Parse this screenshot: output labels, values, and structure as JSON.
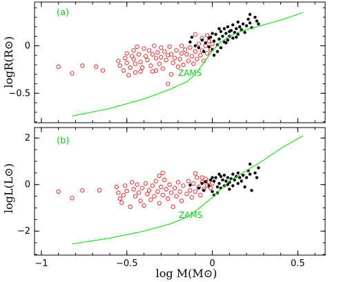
{
  "chart_data": [
    {
      "type": "scatter",
      "panel_label": "(a)",
      "xlim": [
        -1.04,
        0.66
      ],
      "ylim": [
        -0.81,
        0.46
      ],
      "xticks": [
        -1,
        -0.5,
        0,
        0.5
      ],
      "xtick_labels": [
        "",
        "",
        "",
        ""
      ],
      "yticks": [
        -0.5,
        0
      ],
      "ytick_labels": [
        "−0.5",
        "0"
      ],
      "ylabel": "logR(R⊙)",
      "xlabel": "",
      "annotation": "ZAMS",
      "grid": false,
      "legend": "none",
      "colors": {
        "open": "#e01a1a",
        "filled": "#000000",
        "zams": "#22dd22"
      },
      "series": [
        {
          "kind": "open-circle",
          "points": [
            [
              -0.9,
              -0.22
            ],
            [
              -0.82,
              -0.29
            ],
            [
              -0.76,
              -0.21
            ],
            [
              -0.68,
              -0.22
            ],
            [
              -0.64,
              -0.26
            ],
            [
              -0.55,
              -0.16
            ],
            [
              -0.54,
              -0.21
            ],
            [
              -0.52,
              -0.26
            ],
            [
              -0.51,
              -0.13
            ],
            [
              -0.5,
              -0.08
            ],
            [
              -0.5,
              -0.18
            ],
            [
              -0.49,
              -0.31
            ],
            [
              -0.47,
              -0.11
            ],
            [
              -0.46,
              -0.05
            ],
            [
              -0.46,
              -0.14
            ],
            [
              -0.45,
              -0.19
            ],
            [
              -0.44,
              -0.01
            ],
            [
              -0.43,
              -0.09
            ],
            [
              -0.42,
              -0.17
            ],
            [
              -0.41,
              -0.23
            ],
            [
              -0.4,
              -0.03
            ],
            [
              -0.39,
              -0.11
            ],
            [
              -0.38,
              -0.15
            ],
            [
              -0.37,
              -0.05
            ],
            [
              -0.36,
              -0.21
            ],
            [
              -0.35,
              -0.09
            ],
            [
              -0.35,
              -0.27
            ],
            [
              -0.34,
              0.0
            ],
            [
              -0.33,
              -0.13
            ],
            [
              -0.32,
              -0.07
            ],
            [
              -0.31,
              -0.19
            ],
            [
              -0.3,
              -0.02
            ],
            [
              -0.3,
              -0.12
            ],
            [
              -0.29,
              -0.24
            ],
            [
              -0.28,
              -0.06
            ],
            [
              -0.27,
              -0.15
            ],
            [
              -0.26,
              -0.1
            ],
            [
              -0.26,
              -0.4
            ],
            [
              -0.25,
              -0.01
            ],
            [
              -0.24,
              -0.09
            ],
            [
              -0.23,
              -0.18
            ],
            [
              -0.22,
              -0.13
            ],
            [
              -0.21,
              -0.05
            ],
            [
              -0.2,
              -0.22
            ],
            [
              -0.19,
              -0.14
            ],
            [
              -0.18,
              -0.08
            ],
            [
              -0.17,
              -0.2
            ],
            [
              -0.15,
              -0.09
            ],
            [
              -0.14,
              -0.16
            ],
            [
              -0.13,
              -0.02
            ],
            [
              -0.12,
              -0.11
            ],
            [
              -0.11,
              -0.19
            ],
            [
              -0.1,
              -0.06
            ],
            [
              -0.09,
              -0.14
            ],
            [
              -0.08,
              0.02
            ],
            [
              -0.07,
              -0.1
            ],
            [
              -0.06,
              -0.05
            ],
            [
              -0.05,
              -0.16
            ],
            [
              -0.04,
              0.0
            ],
            [
              -0.03,
              -0.08
            ],
            [
              -0.02,
              0.05
            ],
            [
              -0.01,
              -0.04
            ],
            [
              0.0,
              0.02
            ],
            [
              -0.1,
              0.12
            ],
            [
              -0.06,
              0.08
            ],
            [
              -0.03,
              0.11
            ],
            [
              -0.18,
              0.0
            ],
            [
              -0.16,
              -0.04
            ],
            [
              -0.24,
              -0.3
            ],
            [
              -0.33,
              -0.26
            ],
            [
              -0.42,
              -0.27
            ],
            [
              -0.48,
              -0.23
            ],
            [
              -0.45,
              -0.28
            ]
          ]
        },
        {
          "kind": "filled-circle",
          "points": [
            [
              -0.13,
              0.04
            ],
            [
              -0.08,
              -0.02
            ],
            [
              -0.06,
              0.06
            ],
            [
              -0.05,
              -0.06
            ],
            [
              -0.04,
              0.03
            ],
            [
              -0.02,
              -0.01
            ],
            [
              -0.01,
              0.09
            ],
            [
              0.0,
              -0.04
            ],
            [
              0.01,
              0.05
            ],
            [
              0.01,
              -0.1
            ],
            [
              0.02,
              0.12
            ],
            [
              0.03,
              0.01
            ],
            [
              0.03,
              -0.06
            ],
            [
              0.04,
              0.07
            ],
            [
              0.05,
              0.15
            ],
            [
              0.05,
              -0.02
            ],
            [
              0.06,
              0.1
            ],
            [
              0.07,
              0.04
            ],
            [
              0.07,
              0.18
            ],
            [
              0.08,
              0.13
            ],
            [
              0.09,
              0.06
            ],
            [
              0.09,
              0.2
            ],
            [
              0.1,
              0.1
            ],
            [
              0.11,
              0.16
            ],
            [
              0.12,
              0.22
            ],
            [
              0.12,
              0.08
            ],
            [
              0.13,
              0.14
            ],
            [
              0.14,
              0.18
            ],
            [
              0.15,
              0.25
            ],
            [
              0.15,
              0.12
            ],
            [
              0.16,
              0.2
            ],
            [
              0.17,
              0.17
            ],
            [
              0.18,
              0.23
            ],
            [
              0.19,
              0.14
            ],
            [
              0.2,
              0.21
            ],
            [
              0.21,
              0.28
            ],
            [
              0.22,
              0.24
            ],
            [
              0.23,
              0.19
            ],
            [
              0.22,
              0.33
            ],
            [
              0.25,
              0.3
            ],
            [
              0.26,
              0.26
            ],
            [
              0.27,
              0.23
            ],
            [
              -0.02,
              0.08
            ],
            [
              0.0,
              0.13
            ],
            [
              0.04,
              0.18
            ],
            [
              0.08,
              0.03
            ],
            [
              0.1,
              0.15
            ],
            [
              0.14,
              0.09
            ],
            [
              -0.1,
              0.0
            ],
            [
              -0.12,
              0.09
            ]
          ]
        },
        {
          "kind": "line",
          "name": "ZAMS",
          "points": [
            [
              -0.82,
              -0.74
            ],
            [
              -0.6,
              -0.66
            ],
            [
              -0.4,
              -0.56
            ],
            [
              -0.25,
              -0.46
            ],
            [
              -0.15,
              -0.38
            ],
            [
              -0.1,
              -0.3
            ],
            [
              -0.05,
              -0.18
            ],
            [
              0.0,
              -0.05
            ],
            [
              0.05,
              0.04
            ],
            [
              0.1,
              0.1
            ],
            [
              0.15,
              0.14
            ],
            [
              0.2,
              0.17
            ],
            [
              0.3,
              0.22
            ],
            [
              0.4,
              0.27
            ],
            [
              0.53,
              0.35
            ]
          ]
        }
      ]
    },
    {
      "type": "scatter",
      "panel_label": "(b)",
      "xlim": [
        -1.04,
        0.66
      ],
      "ylim": [
        -3.03,
        2.45
      ],
      "xticks": [
        -1,
        -0.5,
        0,
        0.5
      ],
      "xtick_labels": [
        "−1",
        "−0.5",
        "0",
        "0.5"
      ],
      "yticks": [
        -2,
        0,
        2
      ],
      "ytick_labels": [
        "−2",
        "0",
        "2"
      ],
      "ylabel": "logL(L⊙)",
      "xlabel": "log M(M⊙)",
      "annotation": "ZAMS",
      "grid": false,
      "legend": "none",
      "colors": {
        "open": "#e01a1a",
        "filled": "#000000",
        "zams": "#22dd22"
      },
      "series": [
        {
          "kind": "open-circle",
          "points": [
            [
              -0.9,
              -0.3
            ],
            [
              -0.82,
              -0.58
            ],
            [
              -0.76,
              -0.25
            ],
            [
              -0.66,
              -0.24
            ],
            [
              -0.56,
              -0.1
            ],
            [
              -0.55,
              -0.35
            ],
            [
              -0.54,
              -0.6
            ],
            [
              -0.53,
              -0.78
            ],
            [
              -0.52,
              -0.45
            ],
            [
              -0.51,
              -0.05
            ],
            [
              -0.5,
              -0.28
            ],
            [
              -0.48,
              -0.95
            ],
            [
              -0.47,
              0.1
            ],
            [
              -0.46,
              -0.2
            ],
            [
              -0.45,
              -0.5
            ],
            [
              -0.44,
              0.0
            ],
            [
              -0.43,
              -0.35
            ],
            [
              -0.42,
              -0.7
            ],
            [
              -0.41,
              -0.15
            ],
            [
              -0.4,
              -0.9
            ],
            [
              -0.39,
              0.05
            ],
            [
              -0.38,
              -0.4
            ],
            [
              -0.37,
              -0.25
            ],
            [
              -0.36,
              -0.65
            ],
            [
              -0.35,
              -0.05
            ],
            [
              -0.34,
              -0.5
            ],
            [
              -0.33,
              0.15
            ],
            [
              -0.32,
              -0.3
            ],
            [
              -0.31,
              -0.8
            ],
            [
              -0.3,
              -0.1
            ],
            [
              -0.29,
              -0.45
            ],
            [
              -0.28,
              0.2
            ],
            [
              -0.27,
              -0.2
            ],
            [
              -0.26,
              -0.6
            ],
            [
              -0.25,
              0.0
            ],
            [
              -0.24,
              -0.35
            ],
            [
              -0.23,
              -0.95
            ],
            [
              -0.22,
              -0.15
            ],
            [
              -0.21,
              -0.5
            ],
            [
              -0.2,
              0.1
            ],
            [
              -0.19,
              -0.3
            ],
            [
              -0.18,
              -0.7
            ],
            [
              -0.17,
              -0.05
            ],
            [
              -0.15,
              -0.4
            ],
            [
              -0.14,
              0.15
            ],
            [
              -0.13,
              -0.25
            ],
            [
              -0.12,
              -0.55
            ],
            [
              -0.11,
              0.05
            ],
            [
              -0.1,
              -0.3
            ],
            [
              -0.09,
              0.3
            ],
            [
              -0.08,
              -0.1
            ],
            [
              -0.07,
              -0.45
            ],
            [
              -0.06,
              0.1
            ],
            [
              -0.05,
              -0.2
            ],
            [
              -0.04,
              0.25
            ],
            [
              -0.03,
              -0.05
            ],
            [
              -0.02,
              0.12
            ],
            [
              -0.01,
              -0.15
            ],
            [
              0.0,
              0.05
            ],
            [
              -0.1,
              0.48
            ],
            [
              -0.06,
              0.3
            ],
            [
              -0.29,
              0.5
            ],
            [
              -0.31,
              0.38
            ]
          ]
        },
        {
          "kind": "filled-circle",
          "points": [
            [
              -0.13,
              -0.02
            ],
            [
              -0.08,
              -0.15
            ],
            [
              -0.06,
              0.05
            ],
            [
              -0.05,
              -0.25
            ],
            [
              -0.04,
              0.12
            ],
            [
              -0.02,
              -0.05
            ],
            [
              -0.01,
              0.2
            ],
            [
              0.0,
              -0.3
            ],
            [
              0.01,
              0.15
            ],
            [
              0.01,
              -0.45
            ],
            [
              0.02,
              0.3
            ],
            [
              0.03,
              -0.1
            ],
            [
              0.03,
              -0.35
            ],
            [
              0.04,
              0.05
            ],
            [
              0.05,
              0.35
            ],
            [
              0.05,
              -0.15
            ],
            [
              0.06,
              0.2
            ],
            [
              0.07,
              -0.05
            ],
            [
              0.07,
              0.4
            ],
            [
              0.08,
              0.15
            ],
            [
              0.09,
              0.0
            ],
            [
              0.09,
              0.3
            ],
            [
              0.1,
              0.1
            ],
            [
              0.11,
              0.25
            ],
            [
              0.12,
              0.45
            ],
            [
              0.12,
              -0.05
            ],
            [
              0.13,
              0.2
            ],
            [
              0.14,
              0.35
            ],
            [
              0.15,
              0.5
            ],
            [
              0.15,
              0.05
            ],
            [
              0.16,
              0.3
            ],
            [
              0.17,
              0.15
            ],
            [
              0.18,
              0.4
            ],
            [
              0.19,
              -0.1
            ],
            [
              0.2,
              0.3
            ],
            [
              0.21,
              0.6
            ],
            [
              0.22,
              0.45
            ],
            [
              0.23,
              -0.25
            ],
            [
              0.22,
              0.88
            ],
            [
              0.25,
              0.5
            ],
            [
              0.26,
              0.3
            ],
            [
              0.27,
              0.72
            ],
            [
              0.0,
              0.3
            ],
            [
              0.04,
              0.45
            ],
            [
              0.1,
              -0.2
            ]
          ]
        },
        {
          "kind": "line",
          "name": "ZAMS",
          "points": [
            [
              -0.82,
              -2.55
            ],
            [
              -0.6,
              -2.3
            ],
            [
              -0.4,
              -2.0
            ],
            [
              -0.25,
              -1.7
            ],
            [
              -0.15,
              -1.4
            ],
            [
              -0.1,
              -1.15
            ],
            [
              -0.05,
              -0.85
            ],
            [
              0.0,
              -0.55
            ],
            [
              0.05,
              -0.2
            ],
            [
              0.1,
              0.15
            ],
            [
              0.2,
              0.6
            ],
            [
              0.3,
              1.05
            ],
            [
              0.4,
              1.55
            ],
            [
              0.53,
              2.1
            ]
          ]
        }
      ]
    }
  ]
}
